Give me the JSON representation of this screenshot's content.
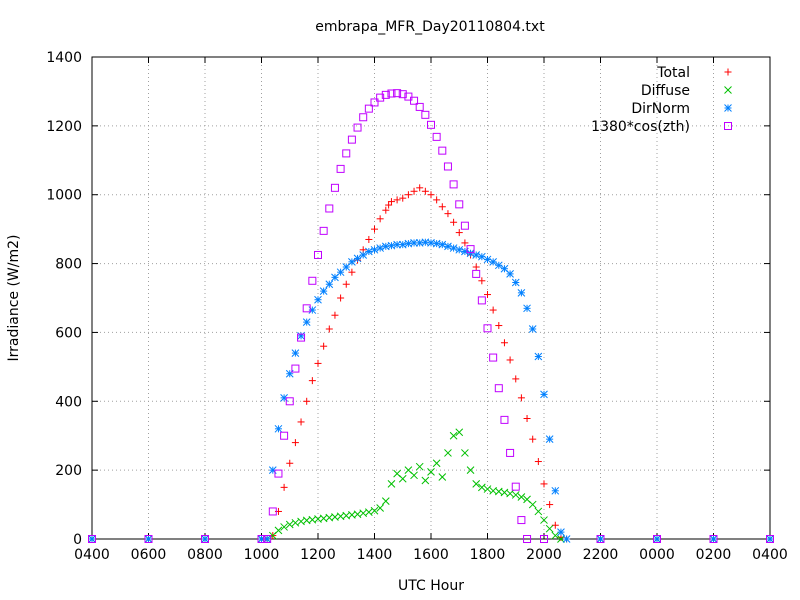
{
  "chart_data": {
    "type": "scatter",
    "title": "embrapa_MFR_Day20110804.txt",
    "xlabel": "UTC Hour",
    "ylabel": "Irradiance (W/m2)",
    "xlim": [
      4,
      28
    ],
    "ylim": [
      0,
      1400
    ],
    "grid": true,
    "legend": "top-right",
    "x_ticks": [
      {
        "value": 4,
        "label": "0400"
      },
      {
        "value": 6,
        "label": "0600"
      },
      {
        "value": 8,
        "label": "0800"
      },
      {
        "value": 10,
        "label": "1000"
      },
      {
        "value": 12,
        "label": "1200"
      },
      {
        "value": 14,
        "label": "1400"
      },
      {
        "value": 16,
        "label": "1600"
      },
      {
        "value": 18,
        "label": "1800"
      },
      {
        "value": 20,
        "label": "2000"
      },
      {
        "value": 22,
        "label": "2200"
      },
      {
        "value": 24,
        "label": "0000"
      },
      {
        "value": 26,
        "label": "0200"
      },
      {
        "value": 28,
        "label": "0400"
      }
    ],
    "y_ticks": [
      0,
      200,
      400,
      600,
      800,
      1000,
      1200,
      1400
    ],
    "series": [
      {
        "name": "Total",
        "marker": "plus",
        "color": "#ff0000",
        "points": [
          [
            4,
            0
          ],
          [
            6,
            0
          ],
          [
            8,
            0
          ],
          [
            10,
            0
          ],
          [
            10.2,
            0
          ],
          [
            10.4,
            10
          ],
          [
            10.6,
            80
          ],
          [
            10.8,
            150
          ],
          [
            11.0,
            220
          ],
          [
            11.2,
            280
          ],
          [
            11.4,
            340
          ],
          [
            11.6,
            400
          ],
          [
            11.8,
            460
          ],
          [
            12.0,
            510
          ],
          [
            12.2,
            560
          ],
          [
            12.4,
            610
          ],
          [
            12.6,
            650
          ],
          [
            12.8,
            700
          ],
          [
            13.0,
            740
          ],
          [
            13.2,
            775
          ],
          [
            13.4,
            810
          ],
          [
            13.6,
            840
          ],
          [
            13.8,
            870
          ],
          [
            14.0,
            900
          ],
          [
            14.2,
            930
          ],
          [
            14.4,
            955
          ],
          [
            14.5,
            970
          ],
          [
            14.6,
            980
          ],
          [
            14.8,
            985
          ],
          [
            15.0,
            990
          ],
          [
            15.2,
            1000
          ],
          [
            15.4,
            1010
          ],
          [
            15.6,
            1020
          ],
          [
            15.8,
            1010
          ],
          [
            16.0,
            1000
          ],
          [
            16.2,
            985
          ],
          [
            16.4,
            965
          ],
          [
            16.6,
            945
          ],
          [
            16.8,
            920
          ],
          [
            17.0,
            890
          ],
          [
            17.2,
            860
          ],
          [
            17.4,
            825
          ],
          [
            17.6,
            790
          ],
          [
            17.8,
            750
          ],
          [
            18.0,
            710
          ],
          [
            18.2,
            665
          ],
          [
            18.4,
            620
          ],
          [
            18.6,
            570
          ],
          [
            18.8,
            520
          ],
          [
            19.0,
            465
          ],
          [
            19.2,
            410
          ],
          [
            19.4,
            350
          ],
          [
            19.6,
            290
          ],
          [
            19.8,
            225
          ],
          [
            20.0,
            160
          ],
          [
            20.2,
            100
          ],
          [
            20.4,
            40
          ],
          [
            20.6,
            5
          ],
          [
            20.8,
            0
          ],
          [
            22,
            0
          ],
          [
            24,
            0
          ],
          [
            26,
            0
          ],
          [
            28,
            0
          ]
        ]
      },
      {
        "name": "Diffuse",
        "marker": "cross",
        "color": "#00c000",
        "points": [
          [
            4,
            0
          ],
          [
            6,
            0
          ],
          [
            8,
            0
          ],
          [
            10,
            0
          ],
          [
            10.2,
            0
          ],
          [
            10.4,
            10
          ],
          [
            10.6,
            25
          ],
          [
            10.8,
            35
          ],
          [
            11.0,
            42
          ],
          [
            11.2,
            47
          ],
          [
            11.4,
            51
          ],
          [
            11.6,
            54
          ],
          [
            11.8,
            56
          ],
          [
            12.0,
            58
          ],
          [
            12.2,
            60
          ],
          [
            12.4,
            62
          ],
          [
            12.6,
            64
          ],
          [
            12.8,
            66
          ],
          [
            13.0,
            68
          ],
          [
            13.2,
            70
          ],
          [
            13.4,
            72
          ],
          [
            13.6,
            75
          ],
          [
            13.8,
            78
          ],
          [
            14.0,
            82
          ],
          [
            14.2,
            90
          ],
          [
            14.4,
            110
          ],
          [
            14.6,
            160
          ],
          [
            14.8,
            190
          ],
          [
            15.0,
            175
          ],
          [
            15.2,
            200
          ],
          [
            15.4,
            185
          ],
          [
            15.6,
            210
          ],
          [
            15.8,
            170
          ],
          [
            16.0,
            195
          ],
          [
            16.2,
            220
          ],
          [
            16.4,
            180
          ],
          [
            16.6,
            250
          ],
          [
            16.8,
            300
          ],
          [
            17.0,
            310
          ],
          [
            17.2,
            250
          ],
          [
            17.4,
            200
          ],
          [
            17.6,
            160
          ],
          [
            17.8,
            150
          ],
          [
            18.0,
            145
          ],
          [
            18.2,
            140
          ],
          [
            18.4,
            138
          ],
          [
            18.6,
            135
          ],
          [
            18.8,
            132
          ],
          [
            19.0,
            128
          ],
          [
            19.2,
            122
          ],
          [
            19.4,
            115
          ],
          [
            19.6,
            100
          ],
          [
            19.8,
            80
          ],
          [
            20.0,
            55
          ],
          [
            20.2,
            30
          ],
          [
            20.4,
            10
          ],
          [
            20.6,
            0
          ],
          [
            22,
            0
          ],
          [
            24,
            0
          ],
          [
            26,
            0
          ],
          [
            28,
            0
          ]
        ]
      },
      {
        "name": "DirNorm",
        "marker": "star",
        "color": "#0080ff",
        "points": [
          [
            4,
            0
          ],
          [
            6,
            0
          ],
          [
            8,
            0
          ],
          [
            10,
            0
          ],
          [
            10.2,
            0
          ],
          [
            10.4,
            200
          ],
          [
            10.6,
            320
          ],
          [
            10.8,
            410
          ],
          [
            11.0,
            480
          ],
          [
            11.2,
            540
          ],
          [
            11.4,
            590
          ],
          [
            11.6,
            630
          ],
          [
            11.8,
            665
          ],
          [
            12.0,
            695
          ],
          [
            12.2,
            720
          ],
          [
            12.4,
            740
          ],
          [
            12.6,
            760
          ],
          [
            12.8,
            775
          ],
          [
            13.0,
            790
          ],
          [
            13.2,
            805
          ],
          [
            13.4,
            815
          ],
          [
            13.6,
            825
          ],
          [
            13.8,
            835
          ],
          [
            14.0,
            840
          ],
          [
            14.2,
            845
          ],
          [
            14.4,
            850
          ],
          [
            14.6,
            852
          ],
          [
            14.8,
            855
          ],
          [
            15.0,
            855
          ],
          [
            15.2,
            858
          ],
          [
            15.4,
            860
          ],
          [
            15.6,
            860
          ],
          [
            15.8,
            862
          ],
          [
            16.0,
            860
          ],
          [
            16.2,
            858
          ],
          [
            16.4,
            855
          ],
          [
            16.6,
            850
          ],
          [
            16.8,
            845
          ],
          [
            17.0,
            840
          ],
          [
            17.2,
            835
          ],
          [
            17.4,
            830
          ],
          [
            17.6,
            825
          ],
          [
            17.8,
            820
          ],
          [
            18.0,
            812
          ],
          [
            18.2,
            805
          ],
          [
            18.4,
            795
          ],
          [
            18.6,
            785
          ],
          [
            18.8,
            770
          ],
          [
            19.0,
            745
          ],
          [
            19.2,
            715
          ],
          [
            19.4,
            670
          ],
          [
            19.6,
            610
          ],
          [
            19.8,
            530
          ],
          [
            20.0,
            420
          ],
          [
            20.2,
            290
          ],
          [
            20.4,
            140
          ],
          [
            20.6,
            20
          ],
          [
            20.8,
            0
          ],
          [
            22,
            0
          ],
          [
            24,
            0
          ],
          [
            26,
            0
          ],
          [
            28,
            0
          ]
        ]
      },
      {
        "name": "1380*cos(zth)",
        "marker": "square",
        "color": "#c000ff",
        "points": [
          [
            4,
            0
          ],
          [
            6,
            0
          ],
          [
            8,
            0
          ],
          [
            10,
            0
          ],
          [
            10.2,
            0
          ],
          [
            10.4,
            80
          ],
          [
            10.6,
            190
          ],
          [
            10.8,
            300
          ],
          [
            11.0,
            400
          ],
          [
            11.2,
            495
          ],
          [
            11.4,
            585
          ],
          [
            11.6,
            670
          ],
          [
            11.8,
            750
          ],
          [
            12.0,
            825
          ],
          [
            12.2,
            895
          ],
          [
            12.4,
            960
          ],
          [
            12.6,
            1020
          ],
          [
            12.8,
            1075
          ],
          [
            13.0,
            1120
          ],
          [
            13.2,
            1160
          ],
          [
            13.4,
            1195
          ],
          [
            13.6,
            1225
          ],
          [
            13.8,
            1250
          ],
          [
            14.0,
            1268
          ],
          [
            14.2,
            1282
          ],
          [
            14.4,
            1290
          ],
          [
            14.6,
            1294
          ],
          [
            14.8,
            1295
          ],
          [
            15.0,
            1292
          ],
          [
            15.2,
            1285
          ],
          [
            15.4,
            1273
          ],
          [
            15.6,
            1255
          ],
          [
            15.8,
            1232
          ],
          [
            16.0,
            1203
          ],
          [
            16.2,
            1168
          ],
          [
            16.4,
            1128
          ],
          [
            16.6,
            1082
          ],
          [
            16.8,
            1030
          ],
          [
            17.0,
            972
          ],
          [
            17.2,
            910
          ],
          [
            17.4,
            842
          ],
          [
            17.6,
            770
          ],
          [
            17.8,
            693
          ],
          [
            18.0,
            612
          ],
          [
            18.2,
            527
          ],
          [
            18.4,
            438
          ],
          [
            18.6,
            346
          ],
          [
            18.8,
            250
          ],
          [
            19.0,
            152
          ],
          [
            19.2,
            55
          ],
          [
            19.4,
            0
          ],
          [
            20,
            0
          ],
          [
            22,
            0
          ],
          [
            24,
            0
          ],
          [
            26,
            0
          ],
          [
            28,
            0
          ]
        ]
      }
    ]
  }
}
